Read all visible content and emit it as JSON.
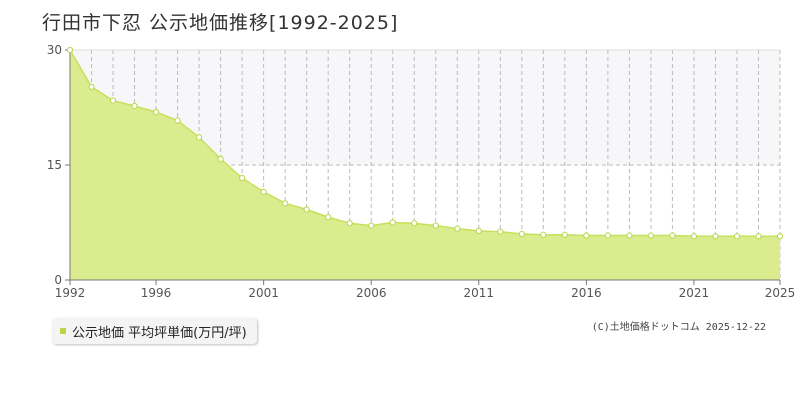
{
  "title": "行田市下忍 公示地価推移[1992-2025]",
  "legend": {
    "label": "公示地価 平均坪単価(万円/坪)"
  },
  "credit": "(C)土地価格ドットコム 2025-12-22",
  "colors": {
    "fill": "#dbec8f",
    "line": "#c6e05a",
    "marker_fill": "#ffffff",
    "marker_stroke": "#b9d64a",
    "grid": "#bbbbbb",
    "band": "#f7f7f9",
    "axis": "#777777",
    "legend_marker": "#b9d64a"
  },
  "chart_data": {
    "type": "area",
    "title": "行田市下忍 公示地価推移[1992-2025]",
    "x": [
      1992,
      1993,
      1994,
      1995,
      1996,
      1997,
      1998,
      1999,
      2000,
      2001,
      2002,
      2003,
      2004,
      2005,
      2006,
      2007,
      2008,
      2009,
      2010,
      2011,
      2012,
      2013,
      2014,
      2015,
      2016,
      2017,
      2018,
      2019,
      2020,
      2021,
      2022,
      2023,
      2024,
      2025
    ],
    "series": [
      {
        "name": "公示地価 平均坪単価(万円/坪)",
        "values": [
          30.0,
          25.2,
          23.4,
          22.7,
          21.9,
          20.8,
          18.6,
          15.8,
          13.3,
          11.5,
          10.0,
          9.2,
          8.2,
          7.4,
          7.1,
          7.5,
          7.4,
          7.1,
          6.7,
          6.4,
          6.3,
          6.0,
          5.9,
          5.9,
          5.8,
          5.8,
          5.8,
          5.8,
          5.8,
          5.7,
          5.7,
          5.7,
          5.7,
          5.7
        ]
      }
    ],
    "x_tick_labels": [
      "1992",
      "1996",
      "2001",
      "2006",
      "2011",
      "2016",
      "2021",
      "2025"
    ],
    "y_tick_labels": [
      "0",
      "15",
      "30"
    ],
    "xlim": [
      1992,
      2025
    ],
    "ylim": [
      0,
      30
    ],
    "grid": true,
    "legend_position": "bottom-left"
  }
}
